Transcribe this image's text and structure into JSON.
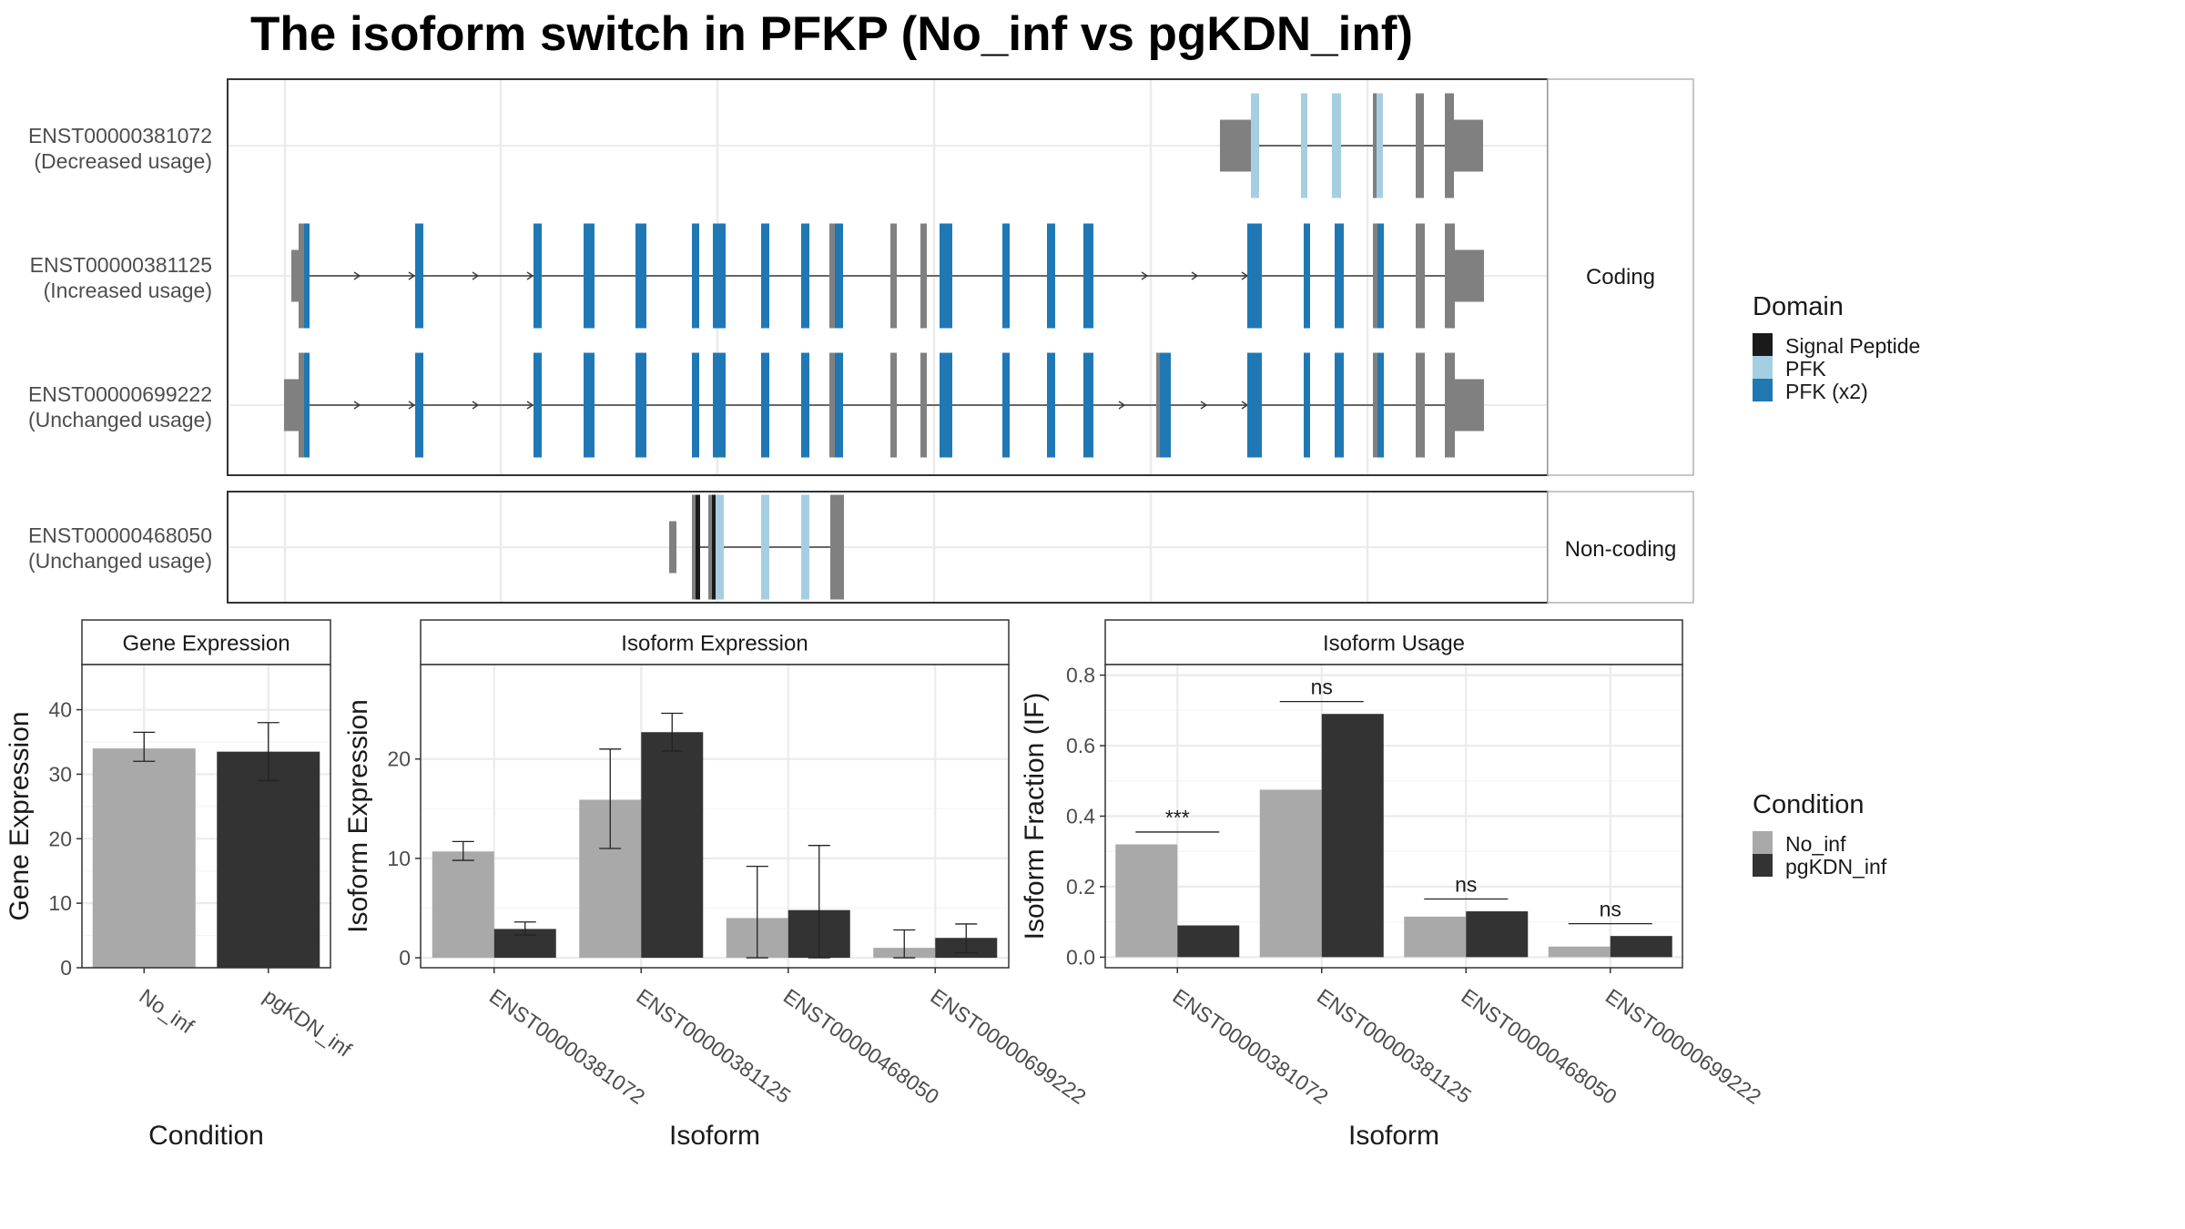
{
  "title": "The isoform switch in PFKP (No_inf vs pgKDN_inf)",
  "colors": {
    "utr": "#808080",
    "signal_peptide": "#1a1a1a",
    "pfk": "#a6cee3",
    "pfk_x2": "#1f78b4",
    "no_inf": "#a9a9a9",
    "pgkdn_inf": "#333333",
    "grid": "#ebebeb",
    "strip": "#ffffff"
  },
  "structure": {
    "coding_label": "Coding",
    "noncoding_label": "Non-coding",
    "transcripts": [
      {
        "id": "ENST00000381072",
        "usage": "(Decreased usage)",
        "group": "coding"
      },
      {
        "id": "ENST00000381125",
        "usage": "(Increased usage)",
        "group": "coding"
      },
      {
        "id": "ENST00000699222",
        "usage": "(Unchanged usage)",
        "group": "coding"
      },
      {
        "id": "ENST00000468050",
        "usage": "(Unchanged usage)",
        "group": "noncoding"
      }
    ]
  },
  "legends": {
    "domain_title": "Domain",
    "domain_items": [
      {
        "label": "Signal Peptide",
        "color": "#1a1a1a"
      },
      {
        "label": "PFK",
        "color": "#a6cee3"
      },
      {
        "label": "PFK (x2)",
        "color": "#1f78b4"
      }
    ],
    "condition_title": "Condition",
    "condition_items": [
      {
        "label": "No_inf",
        "color": "#a9a9a9"
      },
      {
        "label": "pgKDN_inf",
        "color": "#333333"
      }
    ]
  },
  "chart_data": [
    {
      "type": "bar",
      "panel": "Gene Expression",
      "categories": [
        "No_inf",
        "pgKDN_inf"
      ],
      "values": [
        34,
        33.5
      ],
      "errors": [
        [
          32,
          36.5
        ],
        [
          29,
          38
        ]
      ],
      "xlabel": "Condition",
      "ylabel": "Gene Expression",
      "ylim": [
        0,
        47
      ],
      "yticks": [
        0,
        10,
        20,
        30,
        40
      ],
      "legend": "none"
    },
    {
      "type": "bar",
      "panel": "Isoform Expression",
      "categories": [
        "ENST00000381072",
        "ENST00000381125",
        "ENST00000468050",
        "ENST00000699222"
      ],
      "series": [
        {
          "name": "No_inf",
          "values": [
            10.7,
            15.9,
            4.0,
            1.0
          ],
          "errors": [
            [
              9.8,
              11.7
            ],
            [
              11.0,
              21.0
            ],
            [
              0.0,
              9.2
            ],
            [
              0.0,
              2.8
            ]
          ]
        },
        {
          "name": "pgKDN_inf",
          "values": [
            2.9,
            22.7,
            4.8,
            2.0
          ],
          "errors": [
            [
              2.3,
              3.6
            ],
            [
              20.8,
              24.6
            ],
            [
              0.0,
              11.3
            ],
            [
              0.5,
              3.4
            ]
          ]
        }
      ],
      "xlabel": "Isoform",
      "ylabel": "Isoform Expression",
      "ylim": [
        -1,
        29.5
      ],
      "yticks": [
        0,
        10,
        20
      ],
      "legend": "right"
    },
    {
      "type": "bar",
      "panel": "Isoform Usage",
      "categories": [
        "ENST00000381072",
        "ENST00000381125",
        "ENST00000468050",
        "ENST00000699222"
      ],
      "series": [
        {
          "name": "No_inf",
          "values": [
            0.32,
            0.475,
            0.115,
            0.03
          ]
        },
        {
          "name": "pgKDN_inf",
          "values": [
            0.09,
            0.69,
            0.13,
            0.06
          ]
        }
      ],
      "significance": [
        "***",
        "ns",
        "ns",
        "ns"
      ],
      "significance_y": [
        0.355,
        0.725,
        0.165,
        0.095
      ],
      "xlabel": "Isoform",
      "ylabel": "Isoform Fraction (IF)",
      "ylim": [
        -0.03,
        0.83
      ],
      "yticks": [
        0.0,
        0.2,
        0.4,
        0.6,
        0.8
      ],
      "legend": "right"
    }
  ]
}
